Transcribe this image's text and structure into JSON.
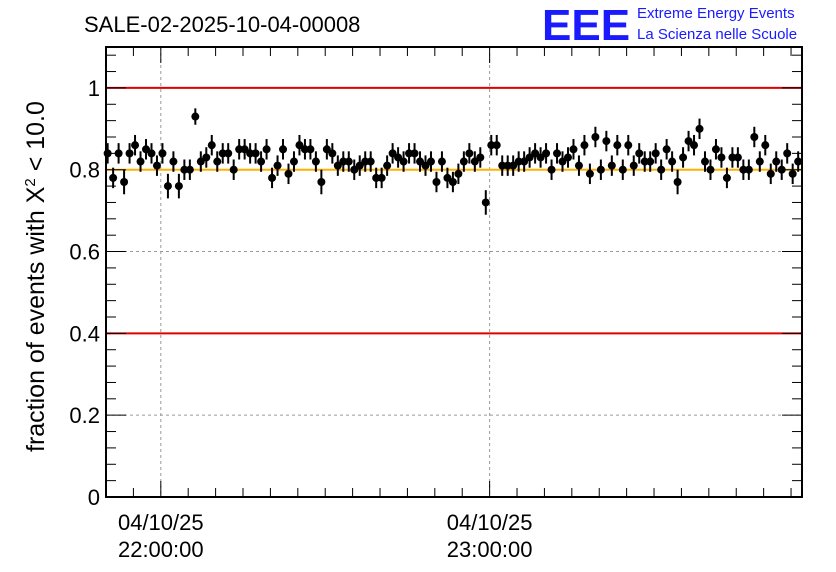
{
  "chart_data": {
    "type": "scatter",
    "title": "SALE-02-2025-10-04-00008",
    "ylabel_prefix": "fraction of events with X",
    "ylabel_sup": "2",
    "ylabel_suffix": " < 10.0",
    "xlabel": "",
    "ylim": [
      0,
      1.1
    ],
    "yticks": [
      "0",
      "0.2",
      "0.4",
      "0.6",
      "0.8",
      "1"
    ],
    "ytick_values": [
      0,
      0.2,
      0.4,
      0.6,
      0.8,
      1
    ],
    "x_unit": "minutes after 04/10/25 21:50:00",
    "xlim": [
      0,
      127
    ],
    "xticks": [
      {
        "value": 10,
        "date": "04/10/25",
        "time": "22:00:00"
      },
      {
        "value": 70,
        "date": "04/10/25",
        "time": "23:00:00"
      }
    ],
    "grid": true,
    "reference_lines": [
      {
        "y": 1.0,
        "color": "#e00000"
      },
      {
        "y": 0.4,
        "color": "#e00000"
      },
      {
        "y": 0.8,
        "color": "#ffb000"
      }
    ],
    "series": [
      {
        "color": "#000000",
        "x": [
          0.3,
          1.3,
          2.3,
          3.3,
          4.3,
          5.3,
          6.3,
          7.3,
          8.3,
          9.3,
          10.3,
          11.3,
          12.3,
          13.3,
          14.3,
          15.3,
          16.3,
          17.3,
          18.3,
          19.3,
          20.3,
          21.3,
          22.3,
          23.3,
          24.3,
          25.3,
          26.3,
          27.3,
          28.3,
          29.3,
          30.3,
          31.3,
          32.3,
          33.3,
          34.3,
          35.3,
          36.3,
          37.3,
          38.3,
          39.3,
          40.3,
          41.3,
          42.3,
          43.3,
          44.3,
          45.3,
          46.3,
          47.3,
          48.3,
          49.3,
          50.3,
          51.3,
          52.3,
          53.3,
          54.3,
          55.3,
          56.3,
          57.3,
          58.3,
          59.3,
          60.3,
          61.3,
          62.3,
          63.3,
          64.3,
          65.3,
          66.3,
          67.3,
          68.3,
          69.3,
          70.3,
          71.3,
          72.3,
          73.3,
          74.3,
          75.3,
          76.3,
          77.3,
          78.3,
          79.3,
          80.3,
          81.3,
          82.3,
          83.3,
          84.3,
          85.3,
          86.3,
          87.3,
          88.3,
          89.3,
          90.3,
          91.3,
          92.3,
          93.3,
          94.3,
          95.3,
          96.3,
          97.3,
          98.3,
          99.3,
          100.3,
          101.3,
          102.3,
          103.3,
          104.3,
          105.3,
          106.3,
          107.3,
          108.3,
          109.3,
          110.3,
          111.3,
          112.3,
          113.3,
          114.3,
          115.3,
          116.3,
          117.3,
          118.3,
          119.3,
          120.3,
          121.3,
          122.3,
          123.3,
          124.3,
          125.3,
          126.3
        ],
        "y": [
          0.84,
          0.78,
          0.84,
          0.77,
          0.84,
          0.86,
          0.82,
          0.85,
          0.84,
          0.81,
          0.84,
          0.76,
          0.82,
          0.76,
          0.8,
          0.8,
          0.93,
          0.82,
          0.83,
          0.86,
          0.82,
          0.84,
          0.84,
          0.8,
          0.85,
          0.85,
          0.84,
          0.84,
          0.82,
          0.85,
          0.78,
          0.81,
          0.85,
          0.79,
          0.82,
          0.86,
          0.85,
          0.85,
          0.82,
          0.77,
          0.85,
          0.84,
          0.81,
          0.82,
          0.82,
          0.8,
          0.81,
          0.82,
          0.82,
          0.78,
          0.78,
          0.81,
          0.84,
          0.83,
          0.82,
          0.84,
          0.84,
          0.82,
          0.81,
          0.82,
          0.77,
          0.82,
          0.78,
          0.77,
          0.79,
          0.82,
          0.84,
          0.82,
          0.83,
          0.72,
          0.86,
          0.86,
          0.81,
          0.81,
          0.81,
          0.82,
          0.82,
          0.83,
          0.84,
          0.83,
          0.84,
          0.8,
          0.84,
          0.82,
          0.83,
          0.85,
          0.81,
          0.86,
          0.79,
          0.88,
          0.8,
          0.87,
          0.81,
          0.86,
          0.8,
          0.86,
          0.81,
          0.84,
          0.82,
          0.82,
          0.84,
          0.8,
          0.85,
          0.82,
          0.77,
          0.83,
          0.87,
          0.86,
          0.9,
          0.82,
          0.8,
          0.85,
          0.83,
          0.78,
          0.83,
          0.83,
          0.8,
          0.8,
          0.88,
          0.82,
          0.86,
          0.79,
          0.82,
          0.8,
          0.84,
          0.79,
          0.82
        ],
        "err": [
          0.025,
          0.025,
          0.025,
          0.03,
          0.025,
          0.025,
          0.025,
          0.025,
          0.025,
          0.025,
          0.025,
          0.03,
          0.025,
          0.03,
          0.025,
          0.025,
          0.02,
          0.025,
          0.025,
          0.025,
          0.025,
          0.025,
          0.025,
          0.025,
          0.025,
          0.025,
          0.025,
          0.025,
          0.025,
          0.025,
          0.025,
          0.025,
          0.025,
          0.025,
          0.025,
          0.025,
          0.025,
          0.025,
          0.025,
          0.03,
          0.025,
          0.025,
          0.025,
          0.025,
          0.025,
          0.025,
          0.025,
          0.025,
          0.025,
          0.025,
          0.025,
          0.025,
          0.025,
          0.025,
          0.025,
          0.025,
          0.025,
          0.025,
          0.025,
          0.025,
          0.025,
          0.025,
          0.025,
          0.025,
          0.025,
          0.025,
          0.025,
          0.025,
          0.025,
          0.03,
          0.025,
          0.025,
          0.025,
          0.025,
          0.025,
          0.025,
          0.025,
          0.025,
          0.025,
          0.025,
          0.025,
          0.025,
          0.025,
          0.025,
          0.025,
          0.025,
          0.025,
          0.025,
          0.025,
          0.025,
          0.025,
          0.025,
          0.025,
          0.025,
          0.025,
          0.025,
          0.025,
          0.025,
          0.025,
          0.025,
          0.025,
          0.025,
          0.025,
          0.025,
          0.03,
          0.025,
          0.025,
          0.025,
          0.025,
          0.025,
          0.025,
          0.025,
          0.025,
          0.025,
          0.025,
          0.025,
          0.025,
          0.025,
          0.025,
          0.025,
          0.025,
          0.025,
          0.025,
          0.025,
          0.025,
          0.025,
          0.025
        ]
      }
    ]
  },
  "logo": {
    "mark": "EEE",
    "line1": "Extreme Energy Events",
    "line2": "La Scienza nelle Scuole"
  }
}
